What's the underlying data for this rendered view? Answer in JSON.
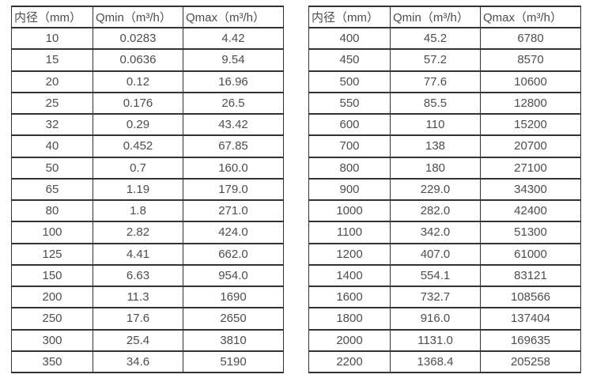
{
  "chart_data": [
    {
      "type": "table",
      "name": "flow-range-table-small-diameters",
      "headers": [
        "内径（mm）",
        "Qmin（m³/h）",
        "Qmax（m³/h）"
      ],
      "rows": [
        [
          "10",
          "0.0283",
          "4.42"
        ],
        [
          "15",
          "0.0636",
          "9.54"
        ],
        [
          "20",
          "0.12",
          "16.96"
        ],
        [
          "25",
          "0.176",
          "26.5"
        ],
        [
          "32",
          "0.29",
          "43.42"
        ],
        [
          "40",
          "0.452",
          "67.85"
        ],
        [
          "50",
          "0.7",
          "160.0"
        ],
        [
          "65",
          "1.19",
          "179.0"
        ],
        [
          "80",
          "1.8",
          "271.0"
        ],
        [
          "100",
          "2.82",
          "424.0"
        ],
        [
          "125",
          "4.41",
          "662.0"
        ],
        [
          "150",
          "6.63",
          "954.0"
        ],
        [
          "200",
          "11.3",
          "1690"
        ],
        [
          "250",
          "17.6",
          "2650"
        ],
        [
          "300",
          "25.4",
          "3810"
        ],
        [
          "350",
          "34.6",
          "5190"
        ]
      ]
    },
    {
      "type": "table",
      "name": "flow-range-table-large-diameters",
      "headers": [
        "内径（mm）",
        "Qmin（m³/h）",
        "Qmax（m³/h）"
      ],
      "rows": [
        [
          "400",
          "45.2",
          "6780"
        ],
        [
          "450",
          "57.2",
          "8570"
        ],
        [
          "500",
          "77.6",
          "10600"
        ],
        [
          "550",
          "85.5",
          "12800"
        ],
        [
          "600",
          "110",
          "15200"
        ],
        [
          "700",
          "138",
          "20700"
        ],
        [
          "800",
          "180",
          "27100"
        ],
        [
          "900",
          "229.0",
          "34300"
        ],
        [
          "1000",
          "282.0",
          "42400"
        ],
        [
          "1100",
          "342.0",
          "51300"
        ],
        [
          "1200",
          "407.0",
          "61000"
        ],
        [
          "1400",
          "554.1",
          "83121"
        ],
        [
          "1600",
          "732.7",
          "108566"
        ],
        [
          "1800",
          "916.0",
          "137404"
        ],
        [
          "2000",
          "1131.0",
          "169635"
        ],
        [
          "2200",
          "1368.4",
          "205258"
        ]
      ]
    }
  ],
  "styles": {
    "text_color": "#4d4d4d",
    "border_color": "#333333",
    "background_color": "#ffffff"
  }
}
